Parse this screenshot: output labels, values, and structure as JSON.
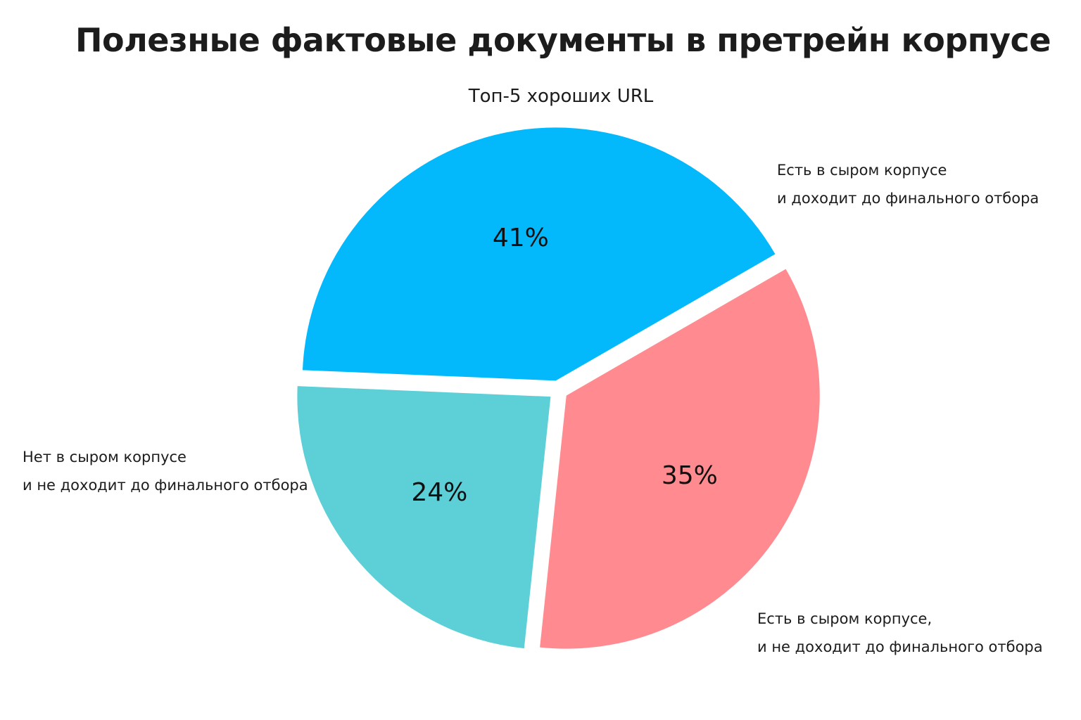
{
  "chart_data": {
    "type": "pie",
    "title": "Полезные фактовые документы в претрейн корпусе",
    "subtitle": "Топ-5 хороших URL",
    "slices": [
      {
        "label_lines": [
          "Есть в сыром корпусе",
          "и доходит до финального отбора"
        ],
        "value": 35,
        "value_label": "35%",
        "color": "#ff8a8f"
      },
      {
        "label_lines": [
          "Есть в сыром корпусе,",
          "и не доходит до финального отбора"
        ],
        "value": 24,
        "value_label": "24%",
        "color": "#5dcfd7"
      },
      {
        "label_lines": [
          "Нет в сыром корпусе",
          "и не доходит до финального отбора"
        ],
        "value": 41,
        "value_label": "41%",
        "color": "#03b9fb"
      }
    ],
    "start_angle_deg": -30,
    "direction": "clockwise",
    "exploded": true,
    "legend": "none"
  }
}
